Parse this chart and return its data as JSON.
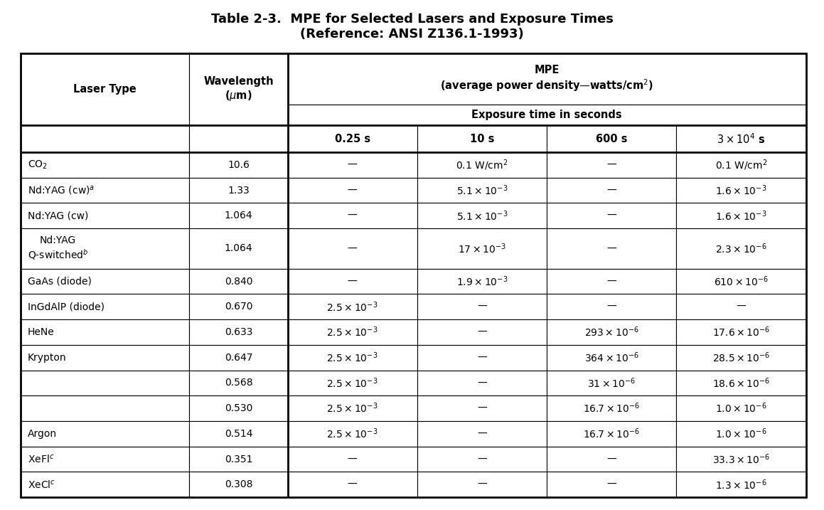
{
  "title_line1": "Table 2-3.  MPE for Selected Lasers and Exposure Times",
  "title_line2": "(Reference: ANSI Z136.1-1993)",
  "rows": [
    {
      "laser": "CO$_2$",
      "wavelength": "10.6",
      "t025": "—",
      "t10": "0.1 W/cm$^2$",
      "t600": "—",
      "t3e4": "0.1 W/cm$^2$"
    },
    {
      "laser": "Nd:YAG (cw)$^a$",
      "wavelength": "1.33",
      "t025": "—",
      "t10": "$5.1 \\times 10^{-3}$",
      "t600": "—",
      "t3e4": "$1.6 \\times 10^{-3}$"
    },
    {
      "laser": "Nd:YAG (cw)",
      "wavelength": "1.064",
      "t025": "—",
      "t10": "$5.1 \\times 10^{-3}$",
      "t600": "—",
      "t3e4": "$1.6 \\times 10^{-3}$"
    },
    {
      "laser": "Nd:YAG\nQ-switched$^b$",
      "wavelength": "1.064",
      "t025": "—",
      "t10": "$17 \\times 10^{-3}$",
      "t600": "—",
      "t3e4": "$2.3 \\times 10^{-6}$"
    },
    {
      "laser": "GaAs (diode)",
      "wavelength": "0.840",
      "t025": "—",
      "t10": "$1.9 \\times 10^{-3}$",
      "t600": "—",
      "t3e4": "$610 \\times 10^{-6}$"
    },
    {
      "laser": "InGdAlP (diode)",
      "wavelength": "0.670",
      "t025": "$2.5 \\times 10^{-3}$",
      "t10": "—",
      "t600": "—",
      "t3e4": "—"
    },
    {
      "laser": "HeNe",
      "wavelength": "0.633",
      "t025": "$2.5 \\times 10^{-3}$",
      "t10": "—",
      "t600": "$293 \\times 10^{-6}$",
      "t3e4": "$17.6 \\times 10^{-6}$"
    },
    {
      "laser": "Krypton",
      "wavelength": "0.647",
      "t025": "$2.5 \\times 10^{-3}$",
      "t10": "—",
      "t600": "$364 \\times 10^{-6}$",
      "t3e4": "$28.5 \\times 10^{-6}$"
    },
    {
      "laser": "",
      "wavelength": "0.568",
      "t025": "$2.5 \\times 10^{-3}$",
      "t10": "—",
      "t600": "$31 \\times 10^{-6}$",
      "t3e4": "$18.6 \\times 10^{-6}$"
    },
    {
      "laser": "",
      "wavelength": "0.530",
      "t025": "$2.5 \\times 10^{-3}$",
      "t10": "—",
      "t600": "$16.7 \\times 10^{-6}$",
      "t3e4": "$1.0 \\times 10^{-6}$"
    },
    {
      "laser": "Argon",
      "wavelength": "0.514",
      "t025": "$2.5 \\times 10^{-3}$",
      "t10": "—",
      "t600": "$16.7 \\times 10^{-6}$",
      "t3e4": "$1.0 \\times 10^{-6}$"
    },
    {
      "laser": "XeFl$^c$",
      "wavelength": "0.351",
      "t025": "—",
      "t10": "—",
      "t600": "—",
      "t3e4": "$33.3 \\times 10^{-6}$"
    },
    {
      "laser": "XeCl$^c$",
      "wavelength": "0.308",
      "t025": "—",
      "t10": "—",
      "t600": "—",
      "t3e4": "$1.3 \\times 10^{-6}$"
    }
  ],
  "col_props": [
    0.215,
    0.125,
    0.165,
    0.165,
    0.165,
    0.165
  ],
  "bg_color": "#ffffff",
  "text_color": "#000000",
  "fig_width": 11.59,
  "fig_height": 7.17,
  "dpi": 100
}
